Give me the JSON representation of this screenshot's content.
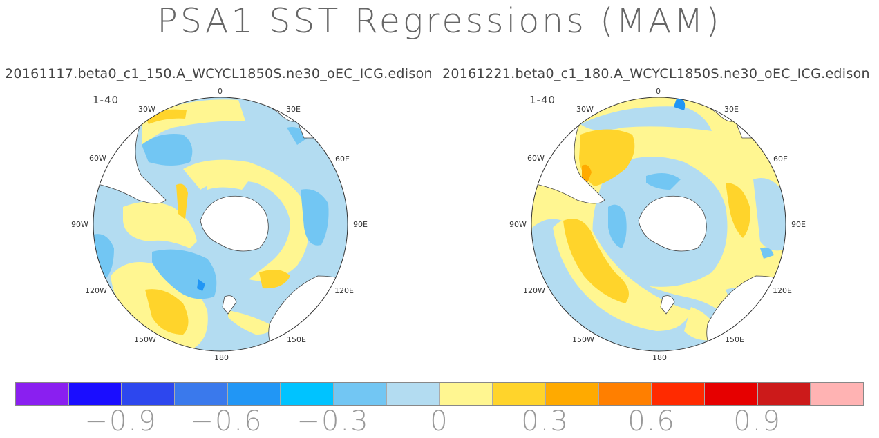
{
  "title": "PSA1 SST Regressions (MAM)",
  "panels": [
    {
      "subtitle": "20161117.beta0_c1_150.A_WCYCL1850S.ne30_oEC_ICG.edison",
      "period": "1-40",
      "lon_labels": {
        "l0": "0",
        "l30e": "30E",
        "l60e": "60E",
        "l90e": "90E",
        "l120e": "120E",
        "l150e": "150E",
        "l180": "180",
        "l150w": "150W",
        "l120w": "120W",
        "l90w": "90W",
        "l60w": "60W",
        "l30w": "30W"
      }
    },
    {
      "subtitle": "20161221.beta0_c1_180.A_WCYCL1850S.ne30_oEC_ICG.edison",
      "period": "1-40",
      "lon_labels": {
        "l0": "0",
        "l30e": "30E",
        "l60e": "60E",
        "l90e": "90E",
        "l120e": "120E",
        "l150e": "150E",
        "l180": "180",
        "l150w": "150W",
        "l120w": "120W",
        "l90w": "90W",
        "l60w": "60W",
        "l30w": "30W"
      }
    }
  ],
  "colorbar": {
    "colors": [
      "#8a1ff0",
      "#1a0dff",
      "#2d47ee",
      "#3a79ec",
      "#2196f5",
      "#00c3ff",
      "#72c6f3",
      "#b3dcf1",
      "#fff691",
      "#ffd42b",
      "#ffaa00",
      "#ff7f00",
      "#ff2a00",
      "#e60000",
      "#cc1a1a",
      "#ffb3b3"
    ],
    "labels": [
      "−0.9",
      "−0.6",
      "−0.3",
      "0",
      "0.3",
      "0.6",
      "0.9"
    ]
  },
  "palette": {
    "light_blue": "#b3dcf1",
    "mid_blue": "#72c6f3",
    "blue": "#2196f5",
    "light_yellow": "#fff691",
    "yellow": "#ffd42b",
    "orange": "#ffaa00",
    "land": "#ffffff"
  }
}
